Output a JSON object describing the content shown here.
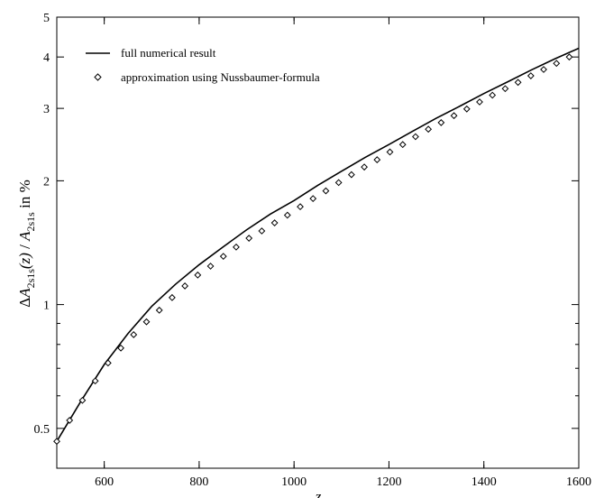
{
  "chart_data": {
    "type": "line",
    "xlabel": "z",
    "ylabel": "ΔA2s1s(z) / A2s1s in %",
    "ylabel_parts": {
      "delta": "Δ",
      "a1": "A",
      "sub1": "2s1s",
      "paren": "(z)",
      "slash": " / ",
      "a2": "A",
      "sub2": "2s1s",
      "suffix": " in %"
    },
    "xlim": [
      500,
      1600
    ],
    "ylim": [
      0.4,
      5
    ],
    "yscale": "log",
    "x_ticks": [
      600,
      800,
      1000,
      1200,
      1400,
      1600
    ],
    "y_ticks": [
      0.5,
      1,
      2,
      3,
      4,
      5
    ],
    "x_tick_labels": [
      "600",
      "800",
      "1000",
      "1200",
      "1400",
      "1600"
    ],
    "y_tick_labels": [
      "0.5",
      "1",
      "2",
      "3",
      "4",
      "5"
    ],
    "grid": false,
    "legend_position": "top-left",
    "series": [
      {
        "name": "full numerical result",
        "style": "line",
        "color": "#000000",
        "x": [
          500,
          550,
          600,
          650,
          700,
          750,
          800,
          850,
          900,
          950,
          1000,
          1050,
          1100,
          1150,
          1200,
          1250,
          1300,
          1350,
          1400,
          1450,
          1500,
          1550,
          1600
        ],
        "y": [
          0.465,
          0.58,
          0.715,
          0.85,
          0.99,
          1.12,
          1.25,
          1.38,
          1.52,
          1.66,
          1.79,
          1.95,
          2.11,
          2.28,
          2.45,
          2.64,
          2.84,
          3.04,
          3.26,
          3.48,
          3.72,
          3.96,
          4.2
        ]
      },
      {
        "name": "approximation using Nussbaumer-formula",
        "style": "markers",
        "marker": "diamond-open",
        "color": "#000000",
        "x": [
          500,
          527,
          554,
          581,
          608,
          635,
          662,
          689,
          716,
          743,
          770,
          797,
          824,
          851,
          878,
          905,
          932,
          959,
          986,
          1013,
          1040,
          1067,
          1094,
          1121,
          1148,
          1175,
          1202,
          1229,
          1256,
          1283,
          1310,
          1337,
          1364,
          1391,
          1418,
          1445,
          1472,
          1499,
          1526,
          1553,
          1580
        ],
        "y": [
          0.465,
          0.523,
          0.585,
          0.652,
          0.721,
          0.784,
          0.845,
          0.908,
          0.969,
          1.04,
          1.11,
          1.18,
          1.24,
          1.31,
          1.38,
          1.45,
          1.51,
          1.58,
          1.65,
          1.73,
          1.81,
          1.89,
          1.98,
          2.07,
          2.16,
          2.25,
          2.35,
          2.45,
          2.56,
          2.67,
          2.77,
          2.88,
          2.99,
          3.11,
          3.23,
          3.35,
          3.47,
          3.6,
          3.73,
          3.86,
          4.0
        ]
      }
    ]
  }
}
